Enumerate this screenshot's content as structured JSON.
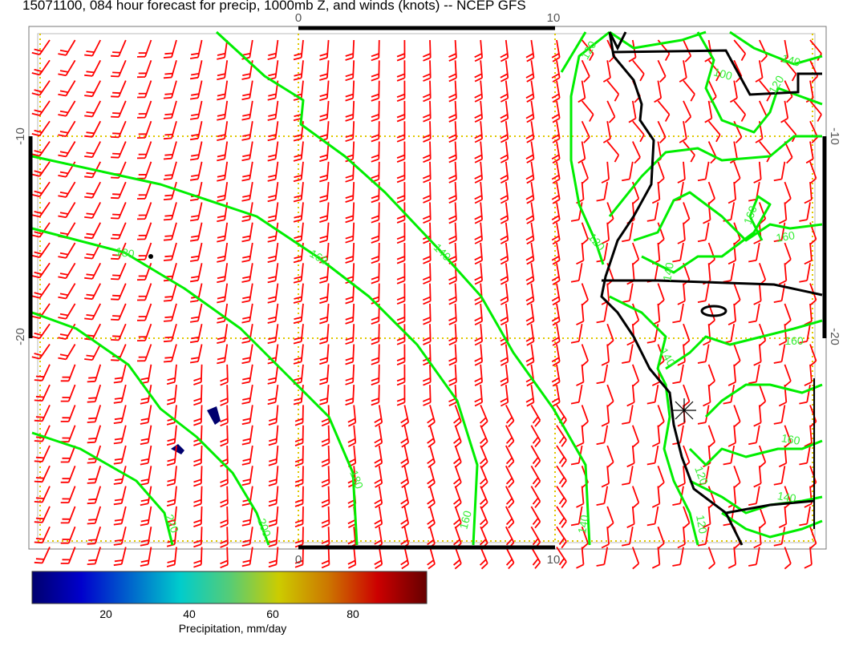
{
  "title": "15071100, 084 hour forecast for precip, 1000mb Z, and winds (knots) -- NCEP GFS",
  "axes": {
    "top_ticks": [
      "0",
      "10"
    ],
    "bottom_ticks": [
      "0",
      "10"
    ],
    "left_ticks": [
      "-10",
      "-20"
    ],
    "right_ticks": [
      "-10",
      "-20"
    ]
  },
  "contour_labels": [
    "220",
    "200",
    "180",
    "160",
    "140",
    "120",
    "180",
    "160",
    "140",
    "120",
    "120",
    "100",
    "140",
    "120",
    "160",
    "160",
    "140",
    "140",
    "160",
    "160",
    "140",
    "120"
  ],
  "colors": {
    "wind_barbs": "#ff0000",
    "height_contours": "#00ee00",
    "coastline": "#000000",
    "grid": "#e0c800"
  },
  "colorbar": {
    "label": "Precipitation, mm/day",
    "ticks": [
      "20",
      "40",
      "60",
      "80"
    ],
    "range": [
      0,
      100
    ],
    "colormap": [
      "#00006e",
      "#0000cc",
      "#0066cc",
      "#00cccc",
      "#55cc77",
      "#cccc00",
      "#cc7700",
      "#cc0000",
      "#660000"
    ]
  }
}
